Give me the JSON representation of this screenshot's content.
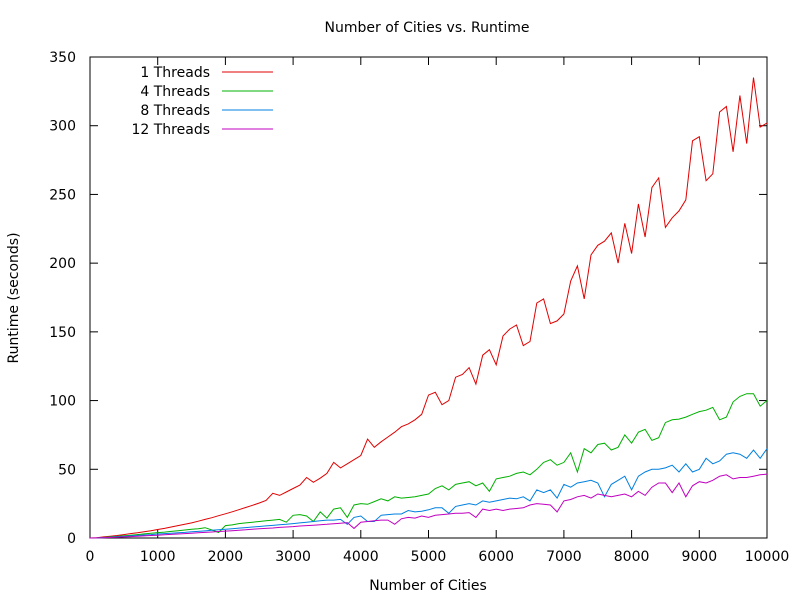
{
  "chart_data": {
    "type": "line",
    "title": "Number of Cities vs. Runtime",
    "xlabel": "Number of Cities",
    "ylabel": "Runtime (seconds)",
    "xlim": [
      0,
      10000
    ],
    "ylim": [
      0,
      350
    ],
    "xticks": [
      "0",
      "1000",
      "2000",
      "3000",
      "4000",
      "5000",
      "6000",
      "7000",
      "8000",
      "9000",
      "10000"
    ],
    "yticks": [
      "0",
      "50",
      "100",
      "150",
      "200",
      "250",
      "300",
      "350"
    ],
    "grid": false,
    "legend_position": "top-left",
    "x": [
      100,
      200,
      300,
      400,
      500,
      600,
      700,
      800,
      900,
      1000,
      1100,
      1200,
      1300,
      1400,
      1500,
      1600,
      1700,
      1800,
      1900,
      2000,
      2100,
      2200,
      2300,
      2400,
      2500,
      2600,
      2700,
      2800,
      2900,
      3000,
      3100,
      3200,
      3300,
      3400,
      3500,
      3600,
      3700,
      3800,
      3900,
      4000,
      4100,
      4200,
      4300,
      4400,
      4500,
      4600,
      4700,
      4800,
      4900,
      5000,
      5100,
      5200,
      5300,
      5400,
      5500,
      5600,
      5700,
      5800,
      5900,
      6000,
      6100,
      6200,
      6300,
      6400,
      6500,
      6600,
      6700,
      6800,
      6900,
      7000,
      7100,
      7200,
      7300,
      7400,
      7500,
      7600,
      7700,
      7800,
      7900,
      8000,
      8100,
      8200,
      8300,
      8400,
      8500,
      8600,
      8700,
      8800,
      8900,
      9000,
      9100,
      9200,
      9300,
      9400,
      9500,
      9600,
      9700,
      9800,
      9900,
      10000
    ],
    "series": [
      {
        "name": "1 Threads",
        "color": "#e00000",
        "values": [
          0.2,
          0.8,
          1.3,
          1.8,
          2.5,
          3.2,
          3.8,
          4.6,
          5.3,
          6.2,
          7.0,
          8.0,
          9.0,
          10.0,
          11.0,
          12.2,
          13.5,
          14.8,
          16.2,
          17.6,
          19.1,
          20.6,
          22.2,
          23.8,
          25.5,
          27.3,
          32.5,
          31.0,
          33.5,
          36.0,
          38.5,
          44.0,
          40.5,
          43.5,
          47.0,
          55.0,
          51.0,
          54.0,
          57.0,
          60.0,
          72.0,
          66.0,
          70.0,
          73.5,
          77.0,
          81.0,
          83.0,
          86.0,
          90.0,
          104.0,
          106.0,
          97.0,
          100.0,
          117.0,
          119.0,
          124.0,
          112.0,
          133.0,
          137.0,
          126.0,
          147.0,
          152.0,
          155.0,
          140.0,
          143.0,
          171.0,
          174.0,
          156.0,
          158.0,
          163.0,
          187.0,
          198.0,
          174.0,
          206.0,
          213.0,
          216.0,
          222.0,
          200.0,
          229.0,
          207.0,
          243.0,
          219.0,
          255.0,
          262.0,
          226.0,
          233.0,
          238.0,
          246.0,
          289.0,
          292.0,
          260.0,
          265.0,
          310.0,
          314.0,
          281.0,
          322.0,
          287.0,
          335.0,
          299.0,
          302.0
        ]
      },
      {
        "name": "4 Threads",
        "color": "#00b000",
        "values": [
          0.1,
          0.4,
          0.8,
          1.2,
          1.6,
          2.0,
          2.5,
          3.0,
          3.4,
          3.9,
          4.3,
          4.8,
          5.3,
          5.8,
          6.3,
          6.8,
          7.5,
          5.8,
          4.0,
          9.0,
          9.5,
          10.5,
          11.0,
          11.5,
          12.0,
          12.5,
          13.0,
          13.5,
          11.5,
          16.5,
          17.0,
          16.0,
          12.0,
          19.0,
          14.5,
          21.0,
          22.0,
          15.0,
          24.0,
          25.0,
          24.5,
          26.5,
          28.5,
          27.0,
          30.0,
          29.0,
          29.5,
          30.0,
          31.0,
          32.0,
          36.0,
          38.0,
          35.0,
          39.0,
          40.0,
          41.0,
          38.0,
          40.0,
          34.0,
          43.0,
          44.0,
          45.0,
          47.0,
          48.0,
          46.0,
          50.0,
          55.0,
          57.0,
          53.0,
          55.0,
          62.0,
          48.0,
          65.0,
          62.0,
          68.0,
          69.0,
          64.0,
          66.0,
          75.0,
          69.0,
          77.0,
          79.0,
          71.0,
          73.0,
          84.0,
          86.0,
          86.5,
          88.0,
          90.0,
          92.0,
          93.0,
          95.0,
          86.0,
          88.0,
          99.0,
          103.0,
          105.0,
          105.0,
          96.0,
          100.0
        ]
      },
      {
        "name": "8 Threads",
        "color": "#0080e0",
        "values": [
          0.1,
          0.3,
          0.6,
          0.9,
          1.2,
          1.5,
          1.8,
          2.2,
          2.5,
          2.9,
          3.2,
          3.5,
          3.8,
          4.1,
          4.5,
          4.8,
          5.2,
          5.6,
          6.0,
          6.4,
          6.8,
          7.2,
          7.6,
          8.0,
          8.4,
          8.8,
          9.2,
          9.6,
          10.0,
          10.5,
          11.0,
          11.5,
          12.0,
          12.5,
          13.0,
          13.0,
          13.5,
          10.0,
          15.0,
          16.0,
          12.0,
          12.0,
          16.5,
          17.0,
          17.5,
          17.5,
          20.0,
          19.0,
          19.5,
          20.5,
          22.0,
          22.0,
          18.0,
          23.0,
          24.0,
          25.0,
          24.0,
          27.0,
          26.0,
          27.0,
          28.0,
          29.0,
          28.5,
          30.0,
          27.0,
          35.0,
          33.0,
          35.0,
          29.0,
          39.0,
          37.0,
          40.0,
          41.0,
          42.0,
          40.0,
          30.0,
          39.0,
          42.0,
          45.0,
          35.0,
          45.0,
          48.0,
          50.0,
          50.0,
          51.0,
          53.0,
          48.0,
          54.0,
          48.0,
          50.0,
          58.0,
          54.0,
          56.0,
          61.0,
          62.0,
          61.0,
          58.0,
          64.0,
          58.0,
          65.0
        ]
      },
      {
        "name": "12 Threads",
        "color": "#c000c0",
        "values": [
          0.1,
          0.2,
          0.4,
          0.6,
          0.8,
          1.0,
          1.3,
          1.5,
          1.8,
          2.0,
          2.3,
          2.6,
          2.9,
          3.2,
          3.5,
          3.8,
          4.1,
          4.4,
          4.7,
          5.0,
          5.3,
          5.7,
          6.0,
          6.4,
          6.7,
          7.0,
          7.3,
          7.7,
          8.0,
          8.3,
          8.7,
          9.0,
          9.3,
          9.7,
          10.0,
          10.4,
          10.8,
          11.2,
          7.0,
          11.5,
          12.0,
          12.5,
          13.0,
          13.0,
          10.0,
          14.0,
          15.0,
          14.5,
          16.0,
          15.0,
          16.5,
          17.0,
          17.5,
          18.0,
          18.0,
          18.5,
          15.0,
          21.0,
          20.0,
          21.0,
          20.0,
          21.0,
          21.5,
          22.0,
          24.0,
          25.0,
          24.5,
          24.0,
          19.0,
          27.0,
          28.0,
          30.0,
          31.0,
          29.0,
          32.0,
          31.0,
          30.0,
          31.0,
          32.0,
          30.0,
          34.0,
          31.0,
          37.0,
          40.0,
          40.0,
          33.0,
          40.0,
          30.0,
          38.0,
          41.0,
          40.0,
          42.0,
          45.0,
          46.0,
          43.0,
          44.0,
          44.0,
          45.0,
          46.0,
          46.5
        ]
      }
    ]
  }
}
